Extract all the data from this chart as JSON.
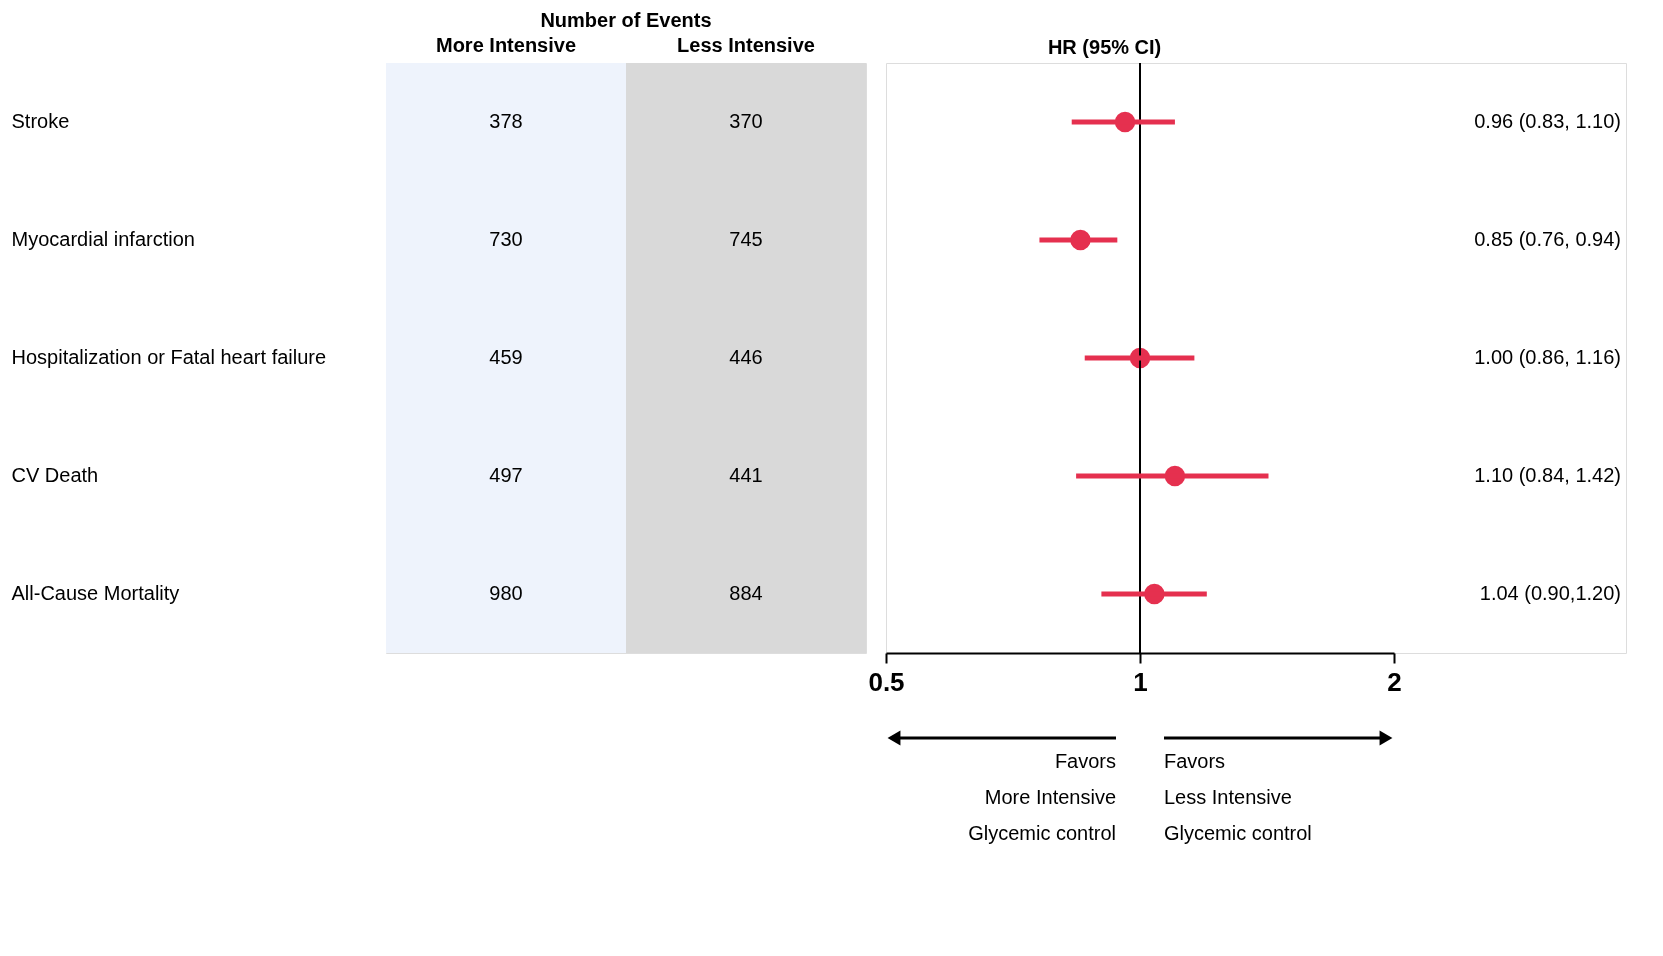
{
  "chart_data": [
    {
      "type": "heatmap",
      "data_labels": true,
      "title": "Number of Events",
      "categories": [
        "More Intensive",
        "Less Intensive"
      ],
      "colors": [
        "#eef3fc",
        "#d9d9d9"
      ],
      "y_categories": [
        "Stroke",
        "Myocardial infarction",
        "Hospitalization or Fatal heart failure",
        "CV Death",
        "All-Cause Mortality"
      ],
      "cells": [
        [
          378,
          370
        ],
        [
          730,
          745
        ],
        [
          459,
          446
        ],
        [
          497,
          441
        ],
        [
          980,
          884
        ]
      ]
    },
    {
      "type": "scatter",
      "orientation": "horizontal",
      "title": "HR (95% CI)",
      "categories": [
        null,
        null,
        null,
        null,
        null
      ],
      "values": [
        0.96,
        0.85,
        1.0,
        1.1,
        1.04
      ],
      "color": "#e5304f",
      "errors": [
        [
          0.83,
          1.1
        ],
        [
          0.76,
          0.94
        ],
        [
          0.86,
          1.16
        ],
        [
          0.84,
          1.42
        ],
        [
          0.9,
          1.2
        ]
      ],
      "value_labels": [
        "0.96 (0.83, 1.10)",
        "0.85 (0.76, 0.94)",
        "1.00 (0.86, 1.16)",
        "1.10 (0.84, 1.42)",
        "1.04 (0.90,1.20)"
      ],
      "log": "x",
      "xlim": [
        0.5,
        2
      ],
      "xticks": [
        0.5,
        1,
        2
      ],
      "tick_labels": "x",
      "grid": false,
      "marker": "circle",
      "ref_lines": [
        {
          "axis": "x",
          "value": 1,
          "color": "#000000"
        }
      ],
      "annotations": [
        "Favors\nMore Intensive\nGlycemic control",
        "Favors\nLess Intensive\nGlycemic control"
      ]
    }
  ]
}
